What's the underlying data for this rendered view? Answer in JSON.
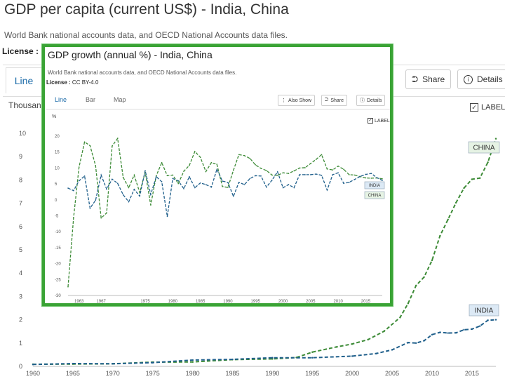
{
  "background": {
    "title": "GDP per capita (current US$) - India, China",
    "source": "World Bank national accounts data, and OECD National Accounts data files.",
    "license_label": "License :",
    "tabs": {
      "line": "Line"
    },
    "buttons": {
      "share": "Share",
      "details": "Details"
    },
    "units": "Thousand",
    "label_toggle": "LABEL"
  },
  "inset": {
    "title": "GDP growth (annual %) - India, China",
    "source": "World Bank national accounts data, and OECD National Accounts data files.",
    "license_label": "License :",
    "license_value": "CC BY-4.0",
    "tabs": {
      "line": "Line",
      "bar": "Bar",
      "map": "Map"
    },
    "buttons": {
      "also_show": "Also Show",
      "share": "Share",
      "details": "Details"
    },
    "units": "%",
    "label_toggle": "LABEL"
  },
  "colors": {
    "china": "#3d8b37",
    "india": "#1f5f8b",
    "inset_border": "#3aa335",
    "accent": "#1a6aa8"
  },
  "icons": {
    "share": "share-icon",
    "details": "info-icon",
    "also_show": "vertical-dots-icon"
  },
  "chart_data": [
    {
      "type": "line",
      "title": "GDP per capita (current US$) - India, China",
      "ylabel": "Thousand",
      "xlim": [
        1960,
        2018
      ],
      "ylim": [
        0,
        10
      ],
      "xticks": [
        1960,
        1965,
        1970,
        1975,
        1980,
        1985,
        1990,
        1995,
        2000,
        2005,
        2010,
        2015
      ],
      "yticks": [
        0,
        1,
        2,
        3,
        4,
        5,
        6,
        7,
        8,
        9,
        10
      ],
      "grid": false,
      "series": [
        {
          "name": "CHINA",
          "color": "#3d8b37",
          "x": [
            1960,
            1965,
            1970,
            1975,
            1980,
            1985,
            1990,
            1993,
            1995,
            1998,
            2000,
            2002,
            2004,
            2006,
            2007,
            2008,
            2009,
            2010,
            2011,
            2012,
            2013,
            2014,
            2015,
            2016,
            2017,
            2018
          ],
          "values": [
            0.09,
            0.1,
            0.11,
            0.18,
            0.19,
            0.29,
            0.32,
            0.38,
            0.61,
            0.83,
            0.96,
            1.15,
            1.51,
            2.1,
            2.7,
            3.47,
            3.83,
            4.55,
            5.6,
            6.3,
            7.02,
            7.65,
            8.03,
            8.08,
            8.76,
            9.77
          ]
        },
        {
          "name": "INDIA",
          "color": "#1f5f8b",
          "x": [
            1960,
            1965,
            1970,
            1975,
            1980,
            1985,
            1990,
            1995,
            2000,
            2003,
            2005,
            2007,
            2008,
            2009,
            2010,
            2011,
            2012,
            2013,
            2014,
            2015,
            2016,
            2017,
            2018
          ],
          "values": [
            0.08,
            0.12,
            0.11,
            0.16,
            0.27,
            0.3,
            0.37,
            0.37,
            0.44,
            0.55,
            0.71,
            1.02,
            1.0,
            1.1,
            1.36,
            1.46,
            1.43,
            1.44,
            1.57,
            1.6,
            1.73,
            1.98,
            2.0
          ]
        }
      ]
    },
    {
      "type": "line",
      "title": "GDP growth (annual %) - India, China",
      "ylabel": "%",
      "xlim": [
        1961,
        2018
      ],
      "ylim": [
        -30,
        20
      ],
      "xticks": [
        1963,
        1967,
        1975,
        1980,
        1985,
        1990,
        1995,
        2000,
        2005,
        2010,
        2015
      ],
      "yticks": [
        20,
        15,
        10,
        5,
        0,
        -5,
        -10,
        -15,
        -20,
        -25,
        -30
      ],
      "grid": false,
      "series": [
        {
          "name": "CHINA",
          "color": "#3d8b37",
          "x": [
            1961,
            1962,
            1963,
            1964,
            1965,
            1966,
            1967,
            1968,
            1969,
            1970,
            1971,
            1972,
            1973,
            1974,
            1975,
            1976,
            1977,
            1978,
            1979,
            1980,
            1981,
            1982,
            1983,
            1984,
            1985,
            1986,
            1987,
            1988,
            1989,
            1990,
            1991,
            1992,
            1993,
            1994,
            1995,
            1996,
            1997,
            1998,
            1999,
            2000,
            2001,
            2002,
            2003,
            2004,
            2005,
            2006,
            2007,
            2008,
            2009,
            2010,
            2011,
            2012,
            2013,
            2014,
            2015,
            2016,
            2017,
            2018
          ],
          "values": [
            -27.3,
            -5.6,
            10.3,
            18.2,
            17.0,
            10.7,
            -5.7,
            -4.1,
            16.9,
            19.3,
            7.1,
            3.8,
            7.8,
            2.3,
            8.7,
            -1.6,
            7.6,
            11.7,
            7.6,
            7.8,
            5.1,
            9.0,
            10.8,
            15.2,
            13.4,
            8.9,
            11.7,
            11.2,
            4.2,
            3.9,
            9.3,
            14.2,
            13.9,
            13.0,
            11.0,
            9.9,
            9.2,
            7.8,
            7.7,
            8.5,
            8.3,
            9.1,
            10.0,
            10.1,
            11.4,
            12.7,
            14.2,
            9.7,
            9.4,
            10.6,
            9.6,
            7.9,
            7.8,
            7.3,
            6.9,
            6.8,
            6.9,
            6.6
          ]
        },
        {
          "name": "INDIA",
          "color": "#1f5f8b",
          "x": [
            1961,
            1962,
            1963,
            1964,
            1965,
            1966,
            1967,
            1968,
            1969,
            1970,
            1971,
            1972,
            1973,
            1974,
            1975,
            1976,
            1977,
            1978,
            1979,
            1980,
            1981,
            1982,
            1983,
            1984,
            1985,
            1986,
            1987,
            1988,
            1989,
            1990,
            1991,
            1992,
            1993,
            1994,
            1995,
            1996,
            1997,
            1998,
            1999,
            2000,
            2001,
            2002,
            2003,
            2004,
            2005,
            2006,
            2007,
            2008,
            2009,
            2010,
            2011,
            2012,
            2013,
            2014,
            2015,
            2016,
            2017,
            2018
          ],
          "values": [
            3.7,
            2.9,
            6.0,
            7.5,
            -2.6,
            -0.1,
            7.8,
            3.4,
            6.5,
            5.2,
            1.6,
            -0.6,
            3.3,
            1.2,
            9.2,
            1.7,
            7.3,
            5.7,
            -5.2,
            6.7,
            6.0,
            3.5,
            7.3,
            3.8,
            5.3,
            4.8,
            4.0,
            9.6,
            5.9,
            5.5,
            1.1,
            5.5,
            4.8,
            6.7,
            7.6,
            7.5,
            4.0,
            6.2,
            8.8,
            3.8,
            4.8,
            3.8,
            7.9,
            7.9,
            7.9,
            8.1,
            7.7,
            3.1,
            7.9,
            8.5,
            5.2,
            5.5,
            6.4,
            7.4,
            8.0,
            8.3,
            7.0,
            6.1
          ]
        }
      ]
    }
  ]
}
